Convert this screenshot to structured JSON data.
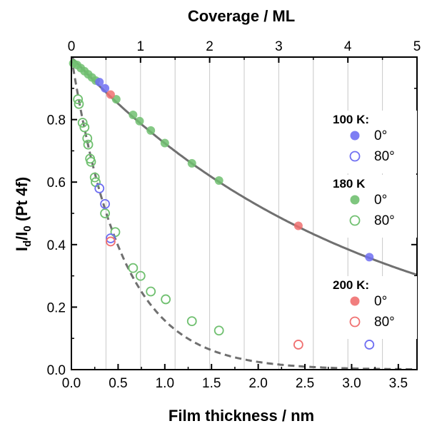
{
  "chart_data": {
    "type": "scatter",
    "xlabel": "Film thickness / nm",
    "ylabel_main": "I",
    "ylabel_sub1": "d",
    "ylabel_mid": "/I",
    "ylabel_sub2": "0",
    "ylabel_tail": " (Pt 4f)",
    "x2label": "Coverage / ML",
    "xlim": [
      0.0,
      3.7
    ],
    "ylim": [
      0.0,
      1.0
    ],
    "x2lim": [
      0,
      5
    ],
    "x_ticks": [
      "0.0",
      "0.5",
      "1.0",
      "1.5",
      "2.0",
      "2.5",
      "3.0",
      "3.5"
    ],
    "y_ticks": [
      "0.0",
      "0.2",
      "0.4",
      "0.6",
      "0.8"
    ],
    "x2_ticks": [
      "0",
      "1",
      "2",
      "3",
      "4",
      "5"
    ],
    "vertical_grid_coverage": [
      0.5,
      1.0,
      1.5,
      2.0,
      2.5,
      3.0,
      3.5,
      4.0,
      4.5
    ],
    "legend_placement": "right",
    "legend": [
      {
        "header": "100 K:",
        "color": "#6f6ff2",
        "items": [
          {
            "label": "0°",
            "filled": true
          },
          {
            "label": "80°",
            "filled": false
          }
        ]
      },
      {
        "header": "180 K",
        "color": "#70c070",
        "items": [
          {
            "label": "0°",
            "filled": true
          },
          {
            "label": "80°",
            "filled": false
          }
        ]
      },
      {
        "header": "200 K:",
        "color": "#f07070",
        "items": [
          {
            "label": "0°",
            "filled": true
          },
          {
            "label": "80°",
            "filled": false
          }
        ]
      }
    ],
    "curves": [
      {
        "style": "solid",
        "color": "#707070",
        "attenuation_length_nm": 3.1
      },
      {
        "style": "dashed",
        "color": "#707070",
        "attenuation_length_nm": 0.54
      }
    ],
    "series": [
      {
        "group": "100 K",
        "angle": "0°",
        "filled": true,
        "color": "#6f6ff2",
        "points": [
          [
            0.3,
            0.92
          ],
          [
            0.36,
            0.9
          ],
          [
            3.19,
            0.36
          ]
        ]
      },
      {
        "group": "100 K",
        "angle": "80°",
        "filled": false,
        "color": "#6f6ff2",
        "points": [
          [
            0.3,
            0.58
          ],
          [
            0.36,
            0.53
          ],
          [
            0.42,
            0.42
          ],
          [
            3.19,
            0.08
          ]
        ]
      },
      {
        "group": "180 K",
        "angle": "0°",
        "filled": true,
        "color": "#70c070",
        "points": [
          [
            0.02,
            0.98
          ],
          [
            0.06,
            0.975
          ],
          [
            0.1,
            0.965
          ],
          [
            0.14,
            0.955
          ],
          [
            0.18,
            0.945
          ],
          [
            0.22,
            0.935
          ],
          [
            0.26,
            0.925
          ],
          [
            0.48,
            0.865
          ],
          [
            0.66,
            0.815
          ],
          [
            0.73,
            0.795
          ],
          [
            0.85,
            0.765
          ],
          [
            1.0,
            0.725
          ],
          [
            1.29,
            0.66
          ],
          [
            1.58,
            0.605
          ]
        ]
      },
      {
        "group": "180 K",
        "angle": "80°",
        "filled": false,
        "color": "#70c070",
        "points": [
          [
            0.07,
            0.865
          ],
          [
            0.08,
            0.85
          ],
          [
            0.12,
            0.79
          ],
          [
            0.14,
            0.775
          ],
          [
            0.17,
            0.74
          ],
          [
            0.18,
            0.72
          ],
          [
            0.2,
            0.675
          ],
          [
            0.21,
            0.665
          ],
          [
            0.25,
            0.615
          ],
          [
            0.26,
            0.6
          ],
          [
            0.36,
            0.5
          ],
          [
            0.47,
            0.44
          ],
          [
            0.66,
            0.325
          ],
          [
            0.74,
            0.3
          ],
          [
            0.85,
            0.25
          ],
          [
            1.01,
            0.225
          ],
          [
            1.29,
            0.155
          ],
          [
            1.58,
            0.125
          ]
        ]
      },
      {
        "group": "200 K",
        "angle": "0°",
        "filled": true,
        "color": "#f07070",
        "points": [
          [
            0.42,
            0.88
          ],
          [
            2.43,
            0.46
          ]
        ]
      },
      {
        "group": "200 K",
        "angle": "80°",
        "filled": false,
        "color": "#f07070",
        "points": [
          [
            0.42,
            0.41
          ],
          [
            2.43,
            0.08
          ]
        ]
      }
    ]
  }
}
